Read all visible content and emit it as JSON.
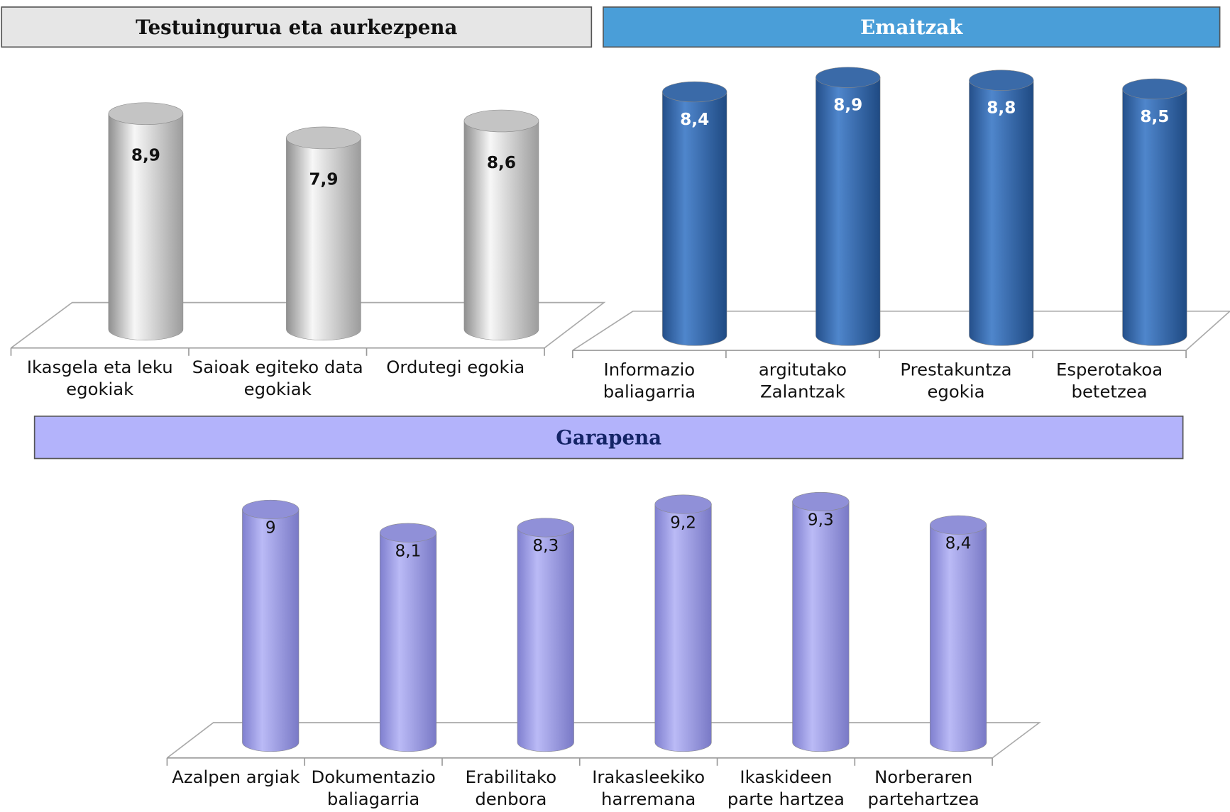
{
  "chart_data": [
    {
      "type": "bar",
      "title": "Testuingurua eta aurkezpena",
      "categories": [
        "Ikasgela eta leku egokiak",
        "Saioak egiteko data egokiak",
        "Ordutegi egokia"
      ],
      "values": [
        8.9,
        7.9,
        8.6
      ],
      "value_labels": [
        "8,9",
        "7,9",
        "8,6"
      ],
      "color": "#d9d9d9"
    },
    {
      "type": "bar",
      "title": "Emaitzak",
      "categories": [
        "Informazio baliagarria",
        "argitutako Zalantzak",
        "Prestakuntza egokia",
        "Esperotakoa betetzea"
      ],
      "values": [
        8.4,
        8.9,
        8.8,
        8.5
      ],
      "value_labels": [
        "8,4",
        "8,9",
        "8,8",
        "8,5"
      ],
      "color": "#3f73b5"
    },
    {
      "type": "bar",
      "title": "Garapena",
      "categories": [
        "Azalpen argiak",
        "Dokumentazio baliagarria",
        "Erabilitako denbora",
        "Irakasleekiko harremana",
        "Ikaskideen parte hartzea",
        "Norberaren partehartzea"
      ],
      "values": [
        9,
        8.1,
        8.3,
        9.2,
        9.3,
        8.4
      ],
      "value_labels": [
        "9",
        "8,1",
        "8,3",
        "9,2",
        "9,3",
        "8,4"
      ],
      "color": "#a6a6ee"
    }
  ]
}
